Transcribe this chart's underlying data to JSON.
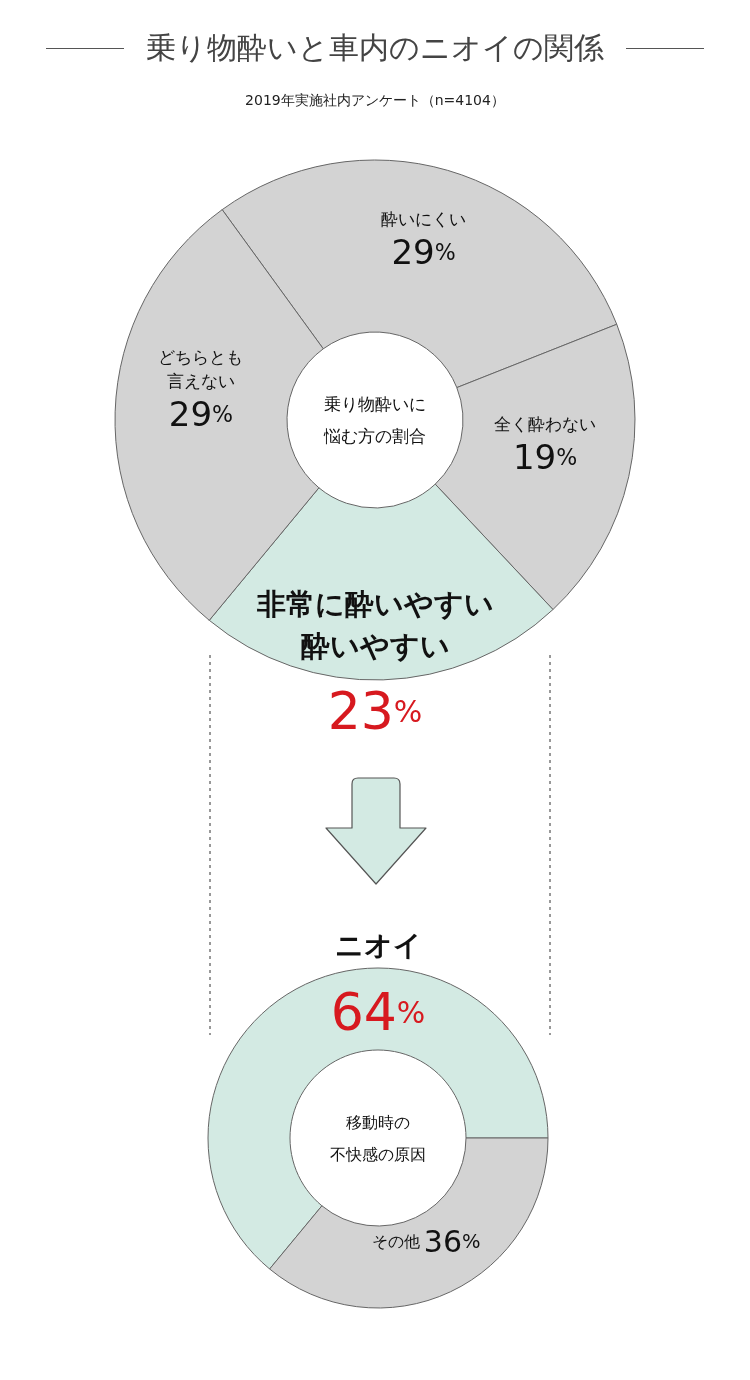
{
  "chart_data": [
    {
      "type": "donut",
      "title": "乗り物酔いと車内のニオイの関係",
      "subtitle": "2019年実施社内アンケート（n=4104）",
      "annotations": [
        "乗り物酔いに悩む方の割合"
      ],
      "categories": [
        "酔いにくい",
        "全く酔わない",
        "非常に酔いやすい酔いやすい",
        "どちらとも言えない"
      ],
      "values": [
        29,
        19,
        23,
        29
      ],
      "value_labels": [
        "29%",
        "19%",
        "23%",
        "29%"
      ],
      "colors": [
        "#d3d3d3",
        "#d3d3d3",
        "#d3eae3",
        "#d3d3d3"
      ]
    },
    {
      "type": "donut",
      "annotations": [
        "移動時の不快感の原因"
      ],
      "categories": [
        "ニオイ",
        "その他"
      ],
      "values": [
        64,
        36
      ],
      "value_labels": [
        "64%",
        "36%"
      ],
      "colors": [
        "#d3eae3",
        "#d3d3d3"
      ]
    }
  ]
}
